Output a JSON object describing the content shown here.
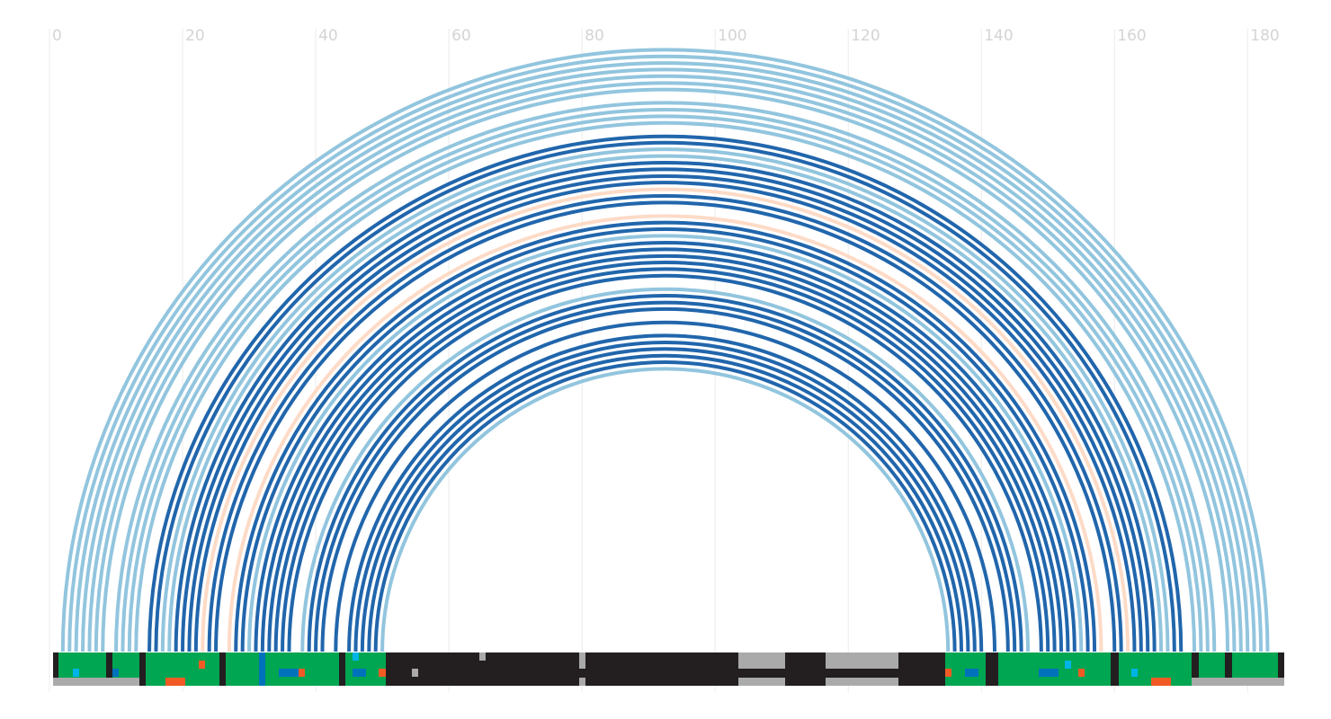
{
  "chart_data": {
    "type": "arc",
    "xlim": [
      0,
      185.5
    ],
    "xticks": [
      0,
      20,
      40,
      60,
      80,
      100,
      120,
      140,
      160,
      180
    ],
    "grid": true,
    "arcs": [
      {
        "start": 2,
        "end": 183,
        "color": "#92c5de"
      },
      {
        "start": 3,
        "end": 182,
        "color": "#92c5de"
      },
      {
        "start": 4,
        "end": 181,
        "color": "#92c5de"
      },
      {
        "start": 5,
        "end": 180,
        "color": "#92c5de"
      },
      {
        "start": 6,
        "end": 179,
        "color": "#92c5de"
      },
      {
        "start": 7,
        "end": 178,
        "color": "#92c5de"
      },
      {
        "start": 8,
        "end": 177,
        "color": "#92c5de"
      },
      {
        "start": 10,
        "end": 175,
        "color": "#92c5de"
      },
      {
        "start": 11,
        "end": 174,
        "color": "#92c5de"
      },
      {
        "start": 12,
        "end": 173,
        "color": "#92c5de"
      },
      {
        "start": 13,
        "end": 172,
        "color": "#92c5de"
      },
      {
        "start": 15,
        "end": 170,
        "color": "#2166ac"
      },
      {
        "start": 16,
        "end": 169,
        "color": "#2166ac"
      },
      {
        "start": 17,
        "end": 168,
        "color": "#92c5de"
      },
      {
        "start": 18,
        "end": 167,
        "color": "#92c5de"
      },
      {
        "start": 19,
        "end": 166,
        "color": "#2166ac"
      },
      {
        "start": 20,
        "end": 165,
        "color": "#2166ac"
      },
      {
        "start": 21,
        "end": 164,
        "color": "#2166ac"
      },
      {
        "start": 22,
        "end": 163,
        "color": "#2166ac"
      },
      {
        "start": 23,
        "end": 162,
        "color": "#fddbc7"
      },
      {
        "start": 24,
        "end": 161,
        "color": "#2166ac"
      },
      {
        "start": 25,
        "end": 160,
        "color": "#2166ac"
      },
      {
        "start": 27,
        "end": 158,
        "color": "#fddbc7"
      },
      {
        "start": 28,
        "end": 157,
        "color": "#2166ac"
      },
      {
        "start": 29,
        "end": 156,
        "color": "#2166ac"
      },
      {
        "start": 30,
        "end": 155,
        "color": "#92c5de"
      },
      {
        "start": 31,
        "end": 154,
        "color": "#2166ac"
      },
      {
        "start": 32,
        "end": 153,
        "color": "#2166ac"
      },
      {
        "start": 33,
        "end": 152,
        "color": "#2166ac"
      },
      {
        "start": 34,
        "end": 151,
        "color": "#2166ac"
      },
      {
        "start": 35,
        "end": 150,
        "color": "#2166ac"
      },
      {
        "start": 36,
        "end": 149,
        "color": "#2166ac"
      },
      {
        "start": 38,
        "end": 147,
        "color": "#92c5de"
      },
      {
        "start": 39,
        "end": 146,
        "color": "#2166ac"
      },
      {
        "start": 40,
        "end": 145,
        "color": "#2166ac"
      },
      {
        "start": 41,
        "end": 144,
        "color": "#2166ac"
      },
      {
        "start": 43,
        "end": 142,
        "color": "#2166ac"
      },
      {
        "start": 45,
        "end": 140,
        "color": "#2166ac"
      },
      {
        "start": 46,
        "end": 139,
        "color": "#2166ac"
      },
      {
        "start": 47,
        "end": 138,
        "color": "#2166ac"
      },
      {
        "start": 48,
        "end": 137,
        "color": "#2166ac"
      },
      {
        "start": 49,
        "end": 136,
        "color": "#2166ac"
      },
      {
        "start": 50,
        "end": 135,
        "color": "#92c5de"
      }
    ]
  }
}
